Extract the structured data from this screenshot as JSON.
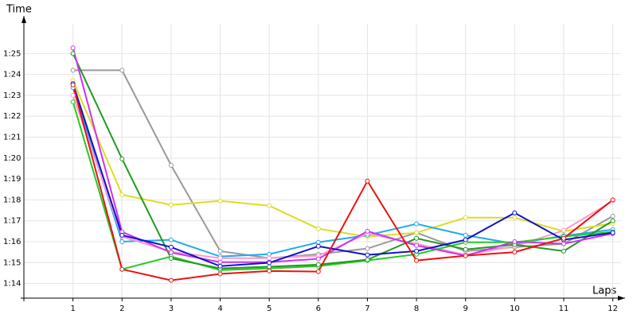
{
  "chart_data": {
    "type": "line",
    "y_label": "Time",
    "x_label": "Laps",
    "x": [
      1,
      2,
      3,
      4,
      5,
      6,
      7,
      8,
      9,
      10,
      11,
      12
    ],
    "xlim": [
      0,
      12.25
    ],
    "xticks": [
      1,
      2,
      3,
      4,
      5,
      6,
      7,
      8,
      9,
      10,
      11,
      12
    ],
    "ylim": [
      73.3,
      86.8
    ],
    "yticks": [
      {
        "value": 74,
        "label": "1:14"
      },
      {
        "value": 75,
        "label": "1:15"
      },
      {
        "value": 76,
        "label": "1:16"
      },
      {
        "value": 77,
        "label": "1:17"
      },
      {
        "value": 78,
        "label": "1:18"
      },
      {
        "value": 79,
        "label": "1:19"
      },
      {
        "value": 80,
        "label": "1:20"
      },
      {
        "value": 81,
        "label": "1:21"
      },
      {
        "value": 82,
        "label": "1:22"
      },
      {
        "value": 83,
        "label": "1:23"
      },
      {
        "value": 84,
        "label": "1:24"
      },
      {
        "value": 85,
        "label": "1:25"
      }
    ],
    "grid": true,
    "series": [
      {
        "color": "#999999",
        "values": [
          84.2,
          84.2,
          79.65,
          75.55,
          75.21,
          75.4,
          75.67,
          76.43,
          75.55,
          75.74,
          75.9,
          77.22
        ]
      },
      {
        "color": "#dddd22",
        "values": [
          83.7,
          78.25,
          77.76,
          77.95,
          77.72,
          76.62,
          76.24,
          76.43,
          77.15,
          77.15,
          76.5,
          76.88
        ]
      },
      {
        "color": "#22aaee",
        "values": [
          83.37,
          76.0,
          76.09,
          75.29,
          75.4,
          75.97,
          76.31,
          76.85,
          76.31,
          75.9,
          76.28,
          76.58
        ]
      },
      {
        "color": "#ff99cc",
        "values": [
          83.0,
          76.24,
          75.52,
          75.21,
          75.21,
          75.33,
          76.39,
          75.9,
          75.37,
          75.78,
          76.54,
          77.95
        ]
      },
      {
        "color": "#22cc22",
        "values": [
          82.69,
          74.68,
          75.29,
          74.64,
          74.72,
          74.83,
          75.1,
          75.4,
          75.97,
          75.97,
          76.24,
          76.47
        ]
      },
      {
        "color": "#229922",
        "values": [
          85.0,
          79.96,
          75.2,
          74.72,
          74.8,
          74.9,
          75.14,
          76.16,
          75.63,
          75.86,
          75.55,
          77.0
        ]
      },
      {
        "color": "#cc33ee",
        "values": [
          85.27,
          76.47,
          75.48,
          75.02,
          75.02,
          75.18,
          76.5,
          75.82,
          75.33,
          76.0,
          75.9,
          76.39
        ]
      },
      {
        "color": "#1111cc",
        "values": [
          83.56,
          76.31,
          75.74,
          74.83,
          74.99,
          75.78,
          75.37,
          75.55,
          76.09,
          77.38,
          76.09,
          76.43
        ]
      },
      {
        "color": "#ee1111",
        "values": [
          83.5,
          74.68,
          74.15,
          74.46,
          74.6,
          74.57,
          78.9,
          75.1,
          75.33,
          75.5,
          76.16,
          78.0
        ]
      }
    ]
  }
}
